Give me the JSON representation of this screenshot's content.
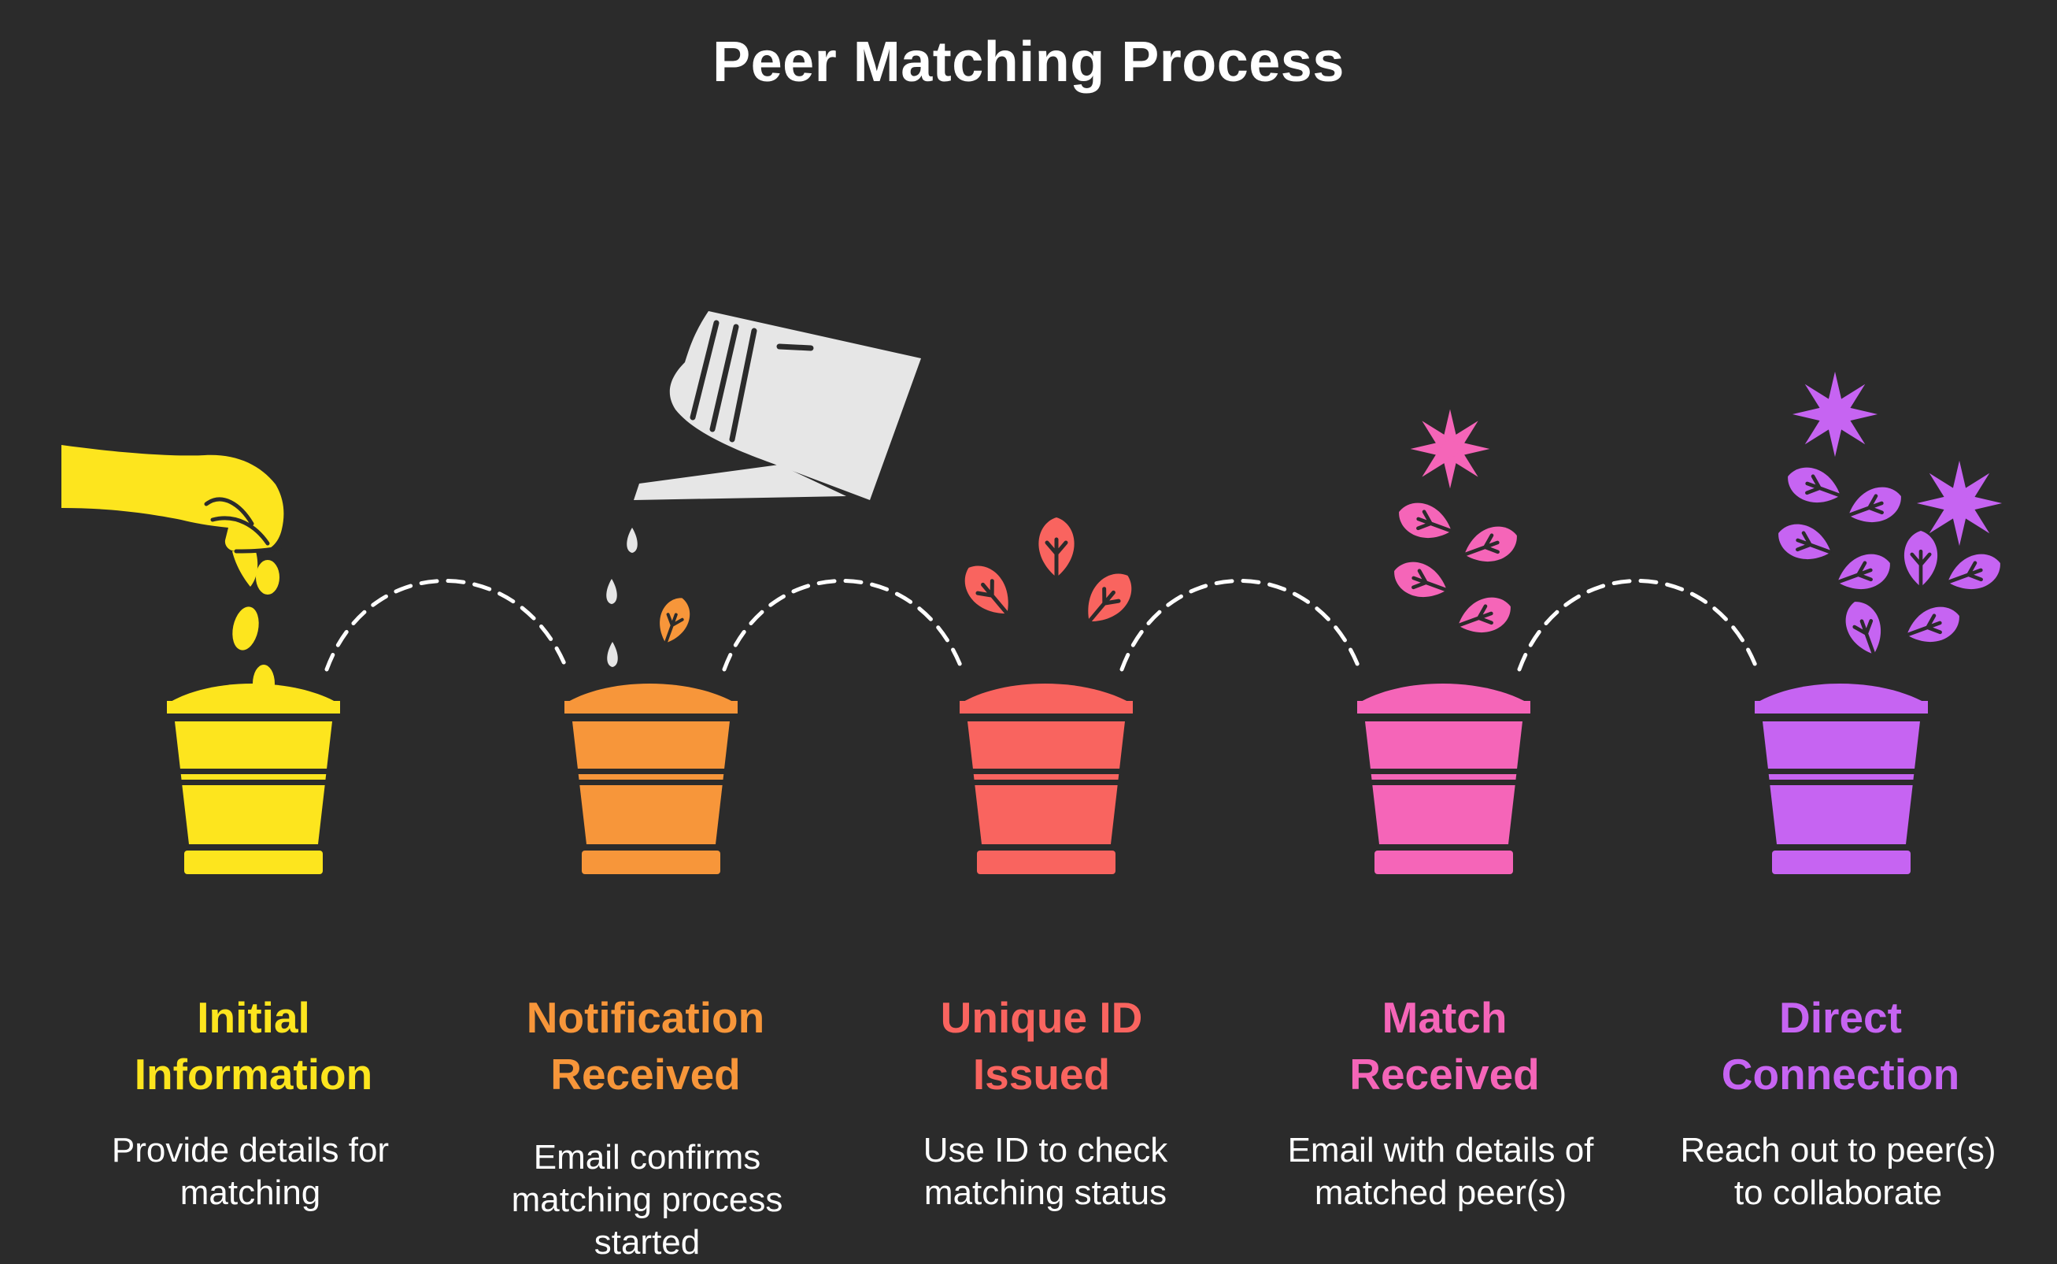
{
  "title": "Peer Matching Process",
  "steps": [
    {
      "title_lines": [
        "Initial",
        "Information"
      ],
      "desc_lines": [
        "Provide details for",
        "matching"
      ],
      "color": "#fde51e",
      "illustration": "hand-planting-seeds-icon"
    },
    {
      "title_lines": [
        "Notification",
        "Received"
      ],
      "desc_lines": [
        "Email confirms",
        "matching process",
        "started"
      ],
      "color": "#f7963a",
      "illustration": "watering-can-icon"
    },
    {
      "title_lines": [
        "Unique ID",
        "Issued"
      ],
      "desc_lines": [
        "Use ID to check",
        "matching status"
      ],
      "color": "#f9645f",
      "illustration": "leaves-icon"
    },
    {
      "title_lines": [
        "Match",
        "Received"
      ],
      "desc_lines": [
        "Email with details of",
        "matched peer(s)"
      ],
      "color": "#f565b8",
      "illustration": "leaves-and-flower-icon"
    },
    {
      "title_lines": [
        "Direct",
        "Connection"
      ],
      "desc_lines": [
        "Reach out to peer(s)",
        "to collaborate"
      ],
      "color": "#c664f2",
      "illustration": "blooming-plant-icon"
    }
  ],
  "palette": {
    "background": "#2b2b2b",
    "text": "#ffffff",
    "connector": "#ffffff",
    "watering_can": "#e6e6e6"
  }
}
